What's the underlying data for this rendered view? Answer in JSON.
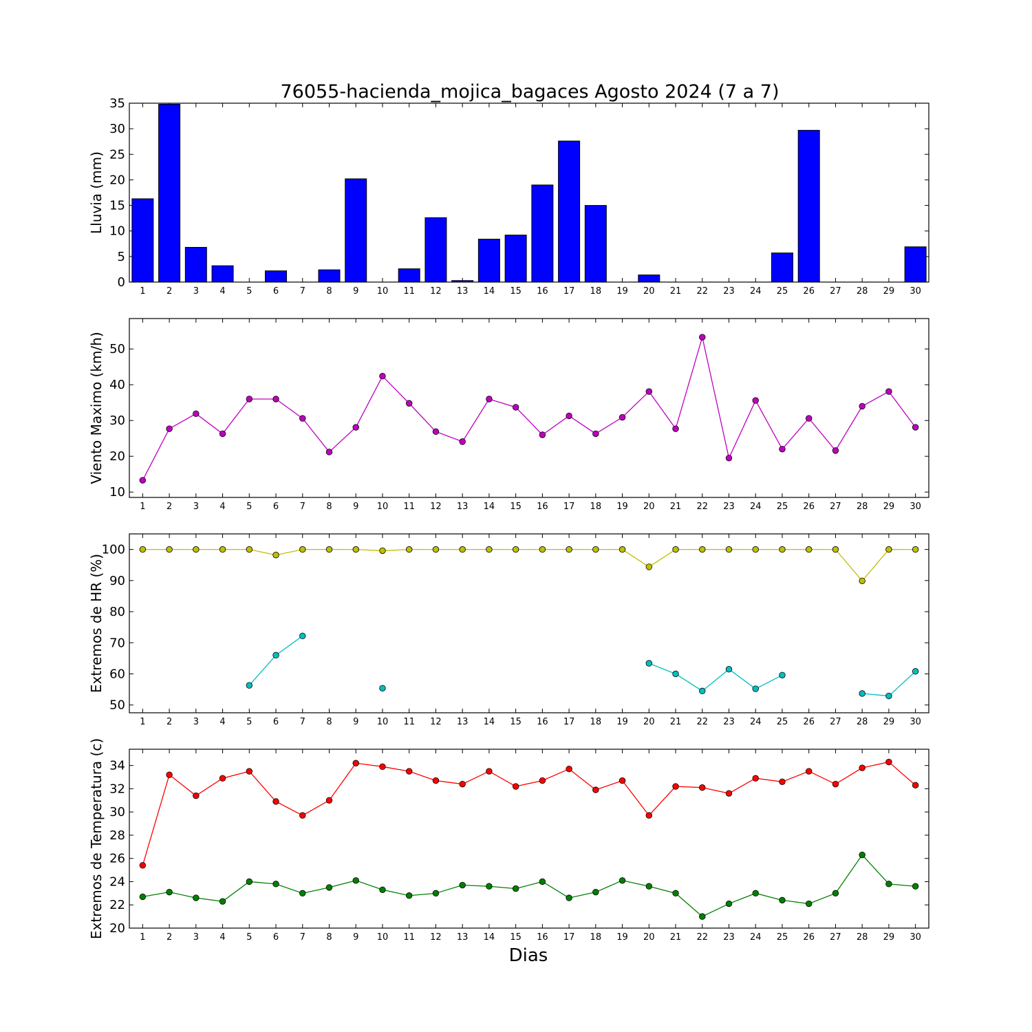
{
  "chart_data": {
    "title": "76055-hacienda_mojica_bagaces Agosto 2024  (7 a 7)",
    "xlabel": "Dias",
    "categories": [
      "1",
      "2",
      "3",
      "4",
      "5",
      "6",
      "7",
      "8",
      "9",
      "10",
      "11",
      "12",
      "13",
      "14",
      "15",
      "16",
      "17",
      "18",
      "19",
      "20",
      "21",
      "22",
      "23",
      "24",
      "25",
      "26",
      "27",
      "28",
      "29",
      "30"
    ],
    "panels": [
      {
        "type": "bar",
        "ylabel": "Lluvia (mm)",
        "ylim": [
          0,
          35
        ],
        "yticks": [
          0,
          5,
          10,
          15,
          20,
          25,
          30,
          35
        ],
        "series": [
          {
            "color": "#0000ff",
            "values": [
              16.3,
              34.8,
              6.8,
              3.2,
              0,
              2.2,
              0,
              2.4,
              20.2,
              0,
              2.6,
              12.6,
              0.3,
              8.4,
              9.2,
              19.0,
              27.6,
              15.0,
              0,
              1.4,
              0,
              0,
              0,
              0,
              5.7,
              29.7,
              0,
              0,
              0,
              6.9
            ]
          }
        ]
      },
      {
        "type": "line",
        "ylabel": "Viento Maximo (km/h)",
        "ylim": [
          8.5,
          58.5
        ],
        "yticks": [
          10,
          20,
          30,
          40,
          50
        ],
        "series": [
          {
            "color": "#bf00bf",
            "values": [
              13.3,
              27.7,
              31.9,
              26.3,
              36.0,
              36.0,
              30.6,
              21.2,
              28.1,
              42.4,
              34.8,
              26.9,
              24.1,
              36.0,
              33.7,
              26.0,
              31.3,
              26.3,
              30.9,
              38.1,
              27.7,
              53.3,
              19.5,
              35.6,
              22.0,
              30.6,
              21.6,
              34.0,
              38.1,
              28.1
            ]
          }
        ]
      },
      {
        "type": "line",
        "ylabel": "Extremos de HR (%)",
        "ylim": [
          47.5,
          105
        ],
        "yticks": [
          50,
          60,
          70,
          80,
          90,
          100
        ],
        "series": [
          {
            "color": "#bfbf00",
            "values": [
              100,
              100,
              100,
              100,
              100,
              98.2,
              100,
              100,
              100,
              99.6,
              100,
              100,
              100,
              100,
              100,
              100,
              100,
              100,
              100,
              94.4,
              100,
              100,
              100,
              100,
              100,
              100,
              100,
              89.9,
              100,
              100
            ]
          },
          {
            "color": "#00bfbf",
            "values": [
              null,
              null,
              null,
              null,
              56.3,
              66.0,
              72.2,
              null,
              null,
              55.4,
              null,
              null,
              null,
              null,
              null,
              null,
              null,
              null,
              null,
              63.4,
              60.0,
              54.5,
              61.5,
              55.2,
              59.6,
              null,
              null,
              53.7,
              52.9,
              60.8
            ]
          }
        ]
      },
      {
        "type": "line",
        "ylabel": "Extremos de Temperatura (c)",
        "ylim": [
          20,
          35.4
        ],
        "yticks": [
          20,
          22,
          24,
          26,
          28,
          30,
          32,
          34
        ],
        "series": [
          {
            "color": "#ff0000",
            "values": [
              25.4,
              33.2,
              31.4,
              32.9,
              33.5,
              30.9,
              29.7,
              31.0,
              34.2,
              33.9,
              33.5,
              32.7,
              32.4,
              33.5,
              32.2,
              32.7,
              33.7,
              31.9,
              32.7,
              29.7,
              32.2,
              32.1,
              31.6,
              32.9,
              32.6,
              33.5,
              32.4,
              33.8,
              34.3,
              32.3
            ]
          },
          {
            "color": "#008000",
            "values": [
              22.7,
              23.1,
              22.6,
              22.3,
              24.0,
              23.8,
              23.0,
              23.5,
              24.1,
              23.3,
              22.8,
              23.0,
              23.7,
              23.6,
              23.4,
              24.0,
              22.6,
              23.1,
              24.1,
              23.6,
              23.0,
              21.0,
              22.1,
              23.0,
              22.4,
              22.1,
              23.0,
              26.3,
              23.8,
              23.6
            ]
          }
        ]
      }
    ]
  }
}
